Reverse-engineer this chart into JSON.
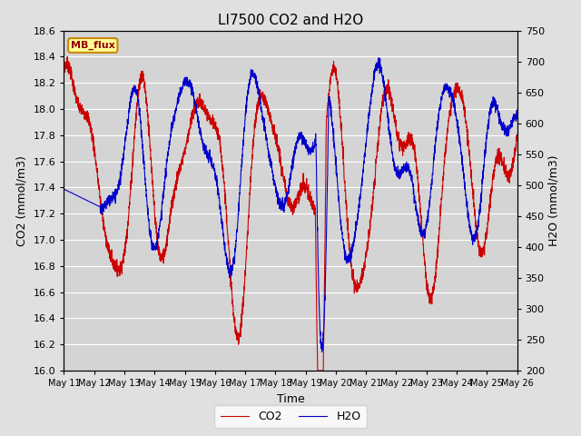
{
  "title": "LI7500 CO2 and H2O",
  "xlabel": "Time",
  "ylabel_left": "CO2 (mmol/m3)",
  "ylabel_right": "H2O (mmol/m3)",
  "co2_ylim": [
    16.0,
    18.6
  ],
  "h2o_ylim": [
    200,
    750
  ],
  "co2_color": "#cc0000",
  "h2o_color": "#0000cc",
  "background_color": "#e0e0e0",
  "plot_bg_color": "#d4d4d4",
  "annotation_text": "MB_flux",
  "annotation_bg": "#ffff99",
  "annotation_border": "#cc8800",
  "x_tick_labels": [
    "May 11",
    "May 12",
    "May 13",
    "May 14",
    "May 15",
    "May 16",
    "May 17",
    "May 18",
    "May 19",
    "May 20",
    "May 21",
    "May 22",
    "May 23",
    "May 24",
    "May 25",
    "May 26"
  ],
  "n_points": 3000,
  "legend_co2": "CO2",
  "legend_h2o": "H2O"
}
